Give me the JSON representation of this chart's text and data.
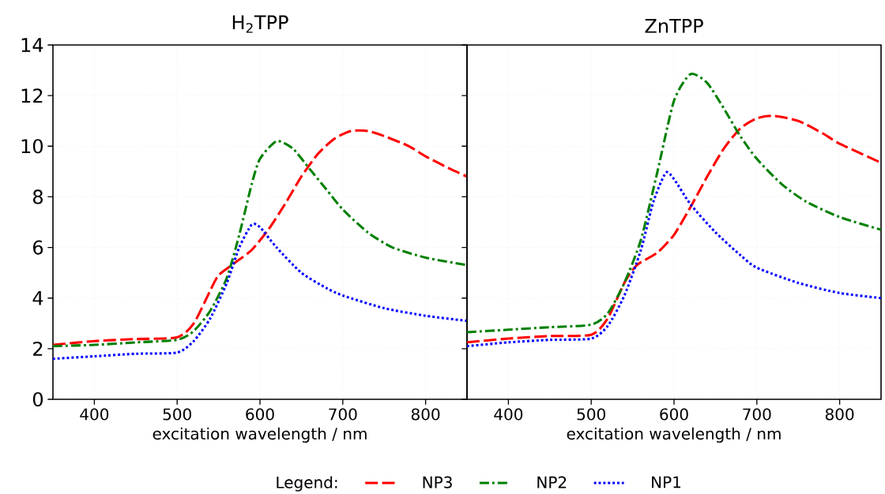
{
  "chart_data": [
    {
      "type": "line",
      "title": "H$_{2}$TPP",
      "xlabel": "excitation wavelength / nm",
      "legend_title": "Legend:",
      "legend": "bottom",
      "grid": true,
      "xlim": [
        350,
        850
      ],
      "xticks": [
        400,
        500,
        600,
        700,
        800
      ],
      "ylim": [
        0,
        14
      ],
      "yticks": [
        0,
        2,
        4,
        6,
        8,
        10,
        12,
        14
      ],
      "series": [
        {
          "name": "NP3",
          "color": "#ff0000",
          "line_style": "dashed",
          "x": [
            350,
            400,
            450,
            500,
            520,
            540,
            550,
            570,
            590,
            610,
            630,
            650,
            670,
            690,
            710,
            730,
            750,
            780,
            800,
            830,
            850
          ],
          "values": [
            2.15,
            2.3,
            2.38,
            2.45,
            3.0,
            4.3,
            4.9,
            5.4,
            5.9,
            6.7,
            7.7,
            8.8,
            9.7,
            10.3,
            10.6,
            10.6,
            10.4,
            10.0,
            9.6,
            9.1,
            8.8
          ]
        },
        {
          "name": "NP2",
          "color": "#008000",
          "line_style": "dashdot",
          "x": [
            350,
            400,
            450,
            500,
            520,
            540,
            560,
            575,
            590,
            600,
            620,
            640,
            660,
            680,
            700,
            730,
            760,
            800,
            850
          ],
          "values": [
            2.1,
            2.15,
            2.25,
            2.35,
            2.7,
            3.5,
            4.8,
            6.5,
            8.5,
            9.5,
            10.2,
            9.9,
            9.1,
            8.3,
            7.5,
            6.6,
            6.0,
            5.6,
            5.3
          ]
        },
        {
          "name": "NP1",
          "color": "#0000ff",
          "line_style": "dotted",
          "x": [
            350,
            400,
            450,
            500,
            520,
            540,
            560,
            575,
            590,
            600,
            620,
            650,
            680,
            700,
            750,
            800,
            850
          ],
          "values": [
            1.6,
            1.7,
            1.8,
            1.85,
            2.3,
            3.2,
            4.6,
            6.0,
            6.9,
            6.8,
            6.0,
            5.0,
            4.4,
            4.1,
            3.6,
            3.3,
            3.1
          ]
        }
      ]
    },
    {
      "type": "line",
      "title": "ZnTPP",
      "xlabel": "excitation wavelength / nm",
      "grid": true,
      "tick_labels": "x",
      "xlim": [
        350,
        850
      ],
      "xticks": [
        400,
        500,
        600,
        700,
        800
      ],
      "ylim": [
        0,
        14
      ],
      "yticks": [
        0,
        2,
        4,
        6,
        8,
        10,
        12,
        14
      ],
      "series": [
        {
          "color": "#ff0000",
          "line_style": "dashed",
          "x": [
            350,
            400,
            450,
            500,
            520,
            540,
            555,
            580,
            600,
            620,
            640,
            660,
            680,
            700,
            720,
            750,
            780,
            800,
            850
          ],
          "values": [
            2.25,
            2.4,
            2.5,
            2.55,
            3.2,
            4.6,
            5.3,
            5.8,
            6.5,
            7.6,
            8.8,
            9.9,
            10.7,
            11.1,
            11.2,
            11.0,
            10.5,
            10.1,
            9.35
          ]
        },
        {
          "color": "#008000",
          "line_style": "dashdot",
          "x": [
            350,
            400,
            450,
            500,
            520,
            540,
            560,
            580,
            600,
            620,
            640,
            660,
            680,
            700,
            730,
            760,
            800,
            850
          ],
          "values": [
            2.65,
            2.75,
            2.85,
            2.95,
            3.4,
            4.6,
            6.3,
            9.0,
            11.8,
            12.85,
            12.5,
            11.5,
            10.4,
            9.5,
            8.5,
            7.8,
            7.2,
            6.7
          ]
        },
        {
          "color": "#0000ff",
          "line_style": "dotted",
          "x": [
            350,
            400,
            450,
            500,
            520,
            540,
            560,
            575,
            590,
            600,
            620,
            650,
            680,
            700,
            750,
            800,
            850
          ],
          "values": [
            2.1,
            2.25,
            2.35,
            2.4,
            2.9,
            4.1,
            5.9,
            7.8,
            8.95,
            8.7,
            7.7,
            6.6,
            5.7,
            5.2,
            4.6,
            4.2,
            4.0
          ]
        }
      ]
    }
  ]
}
